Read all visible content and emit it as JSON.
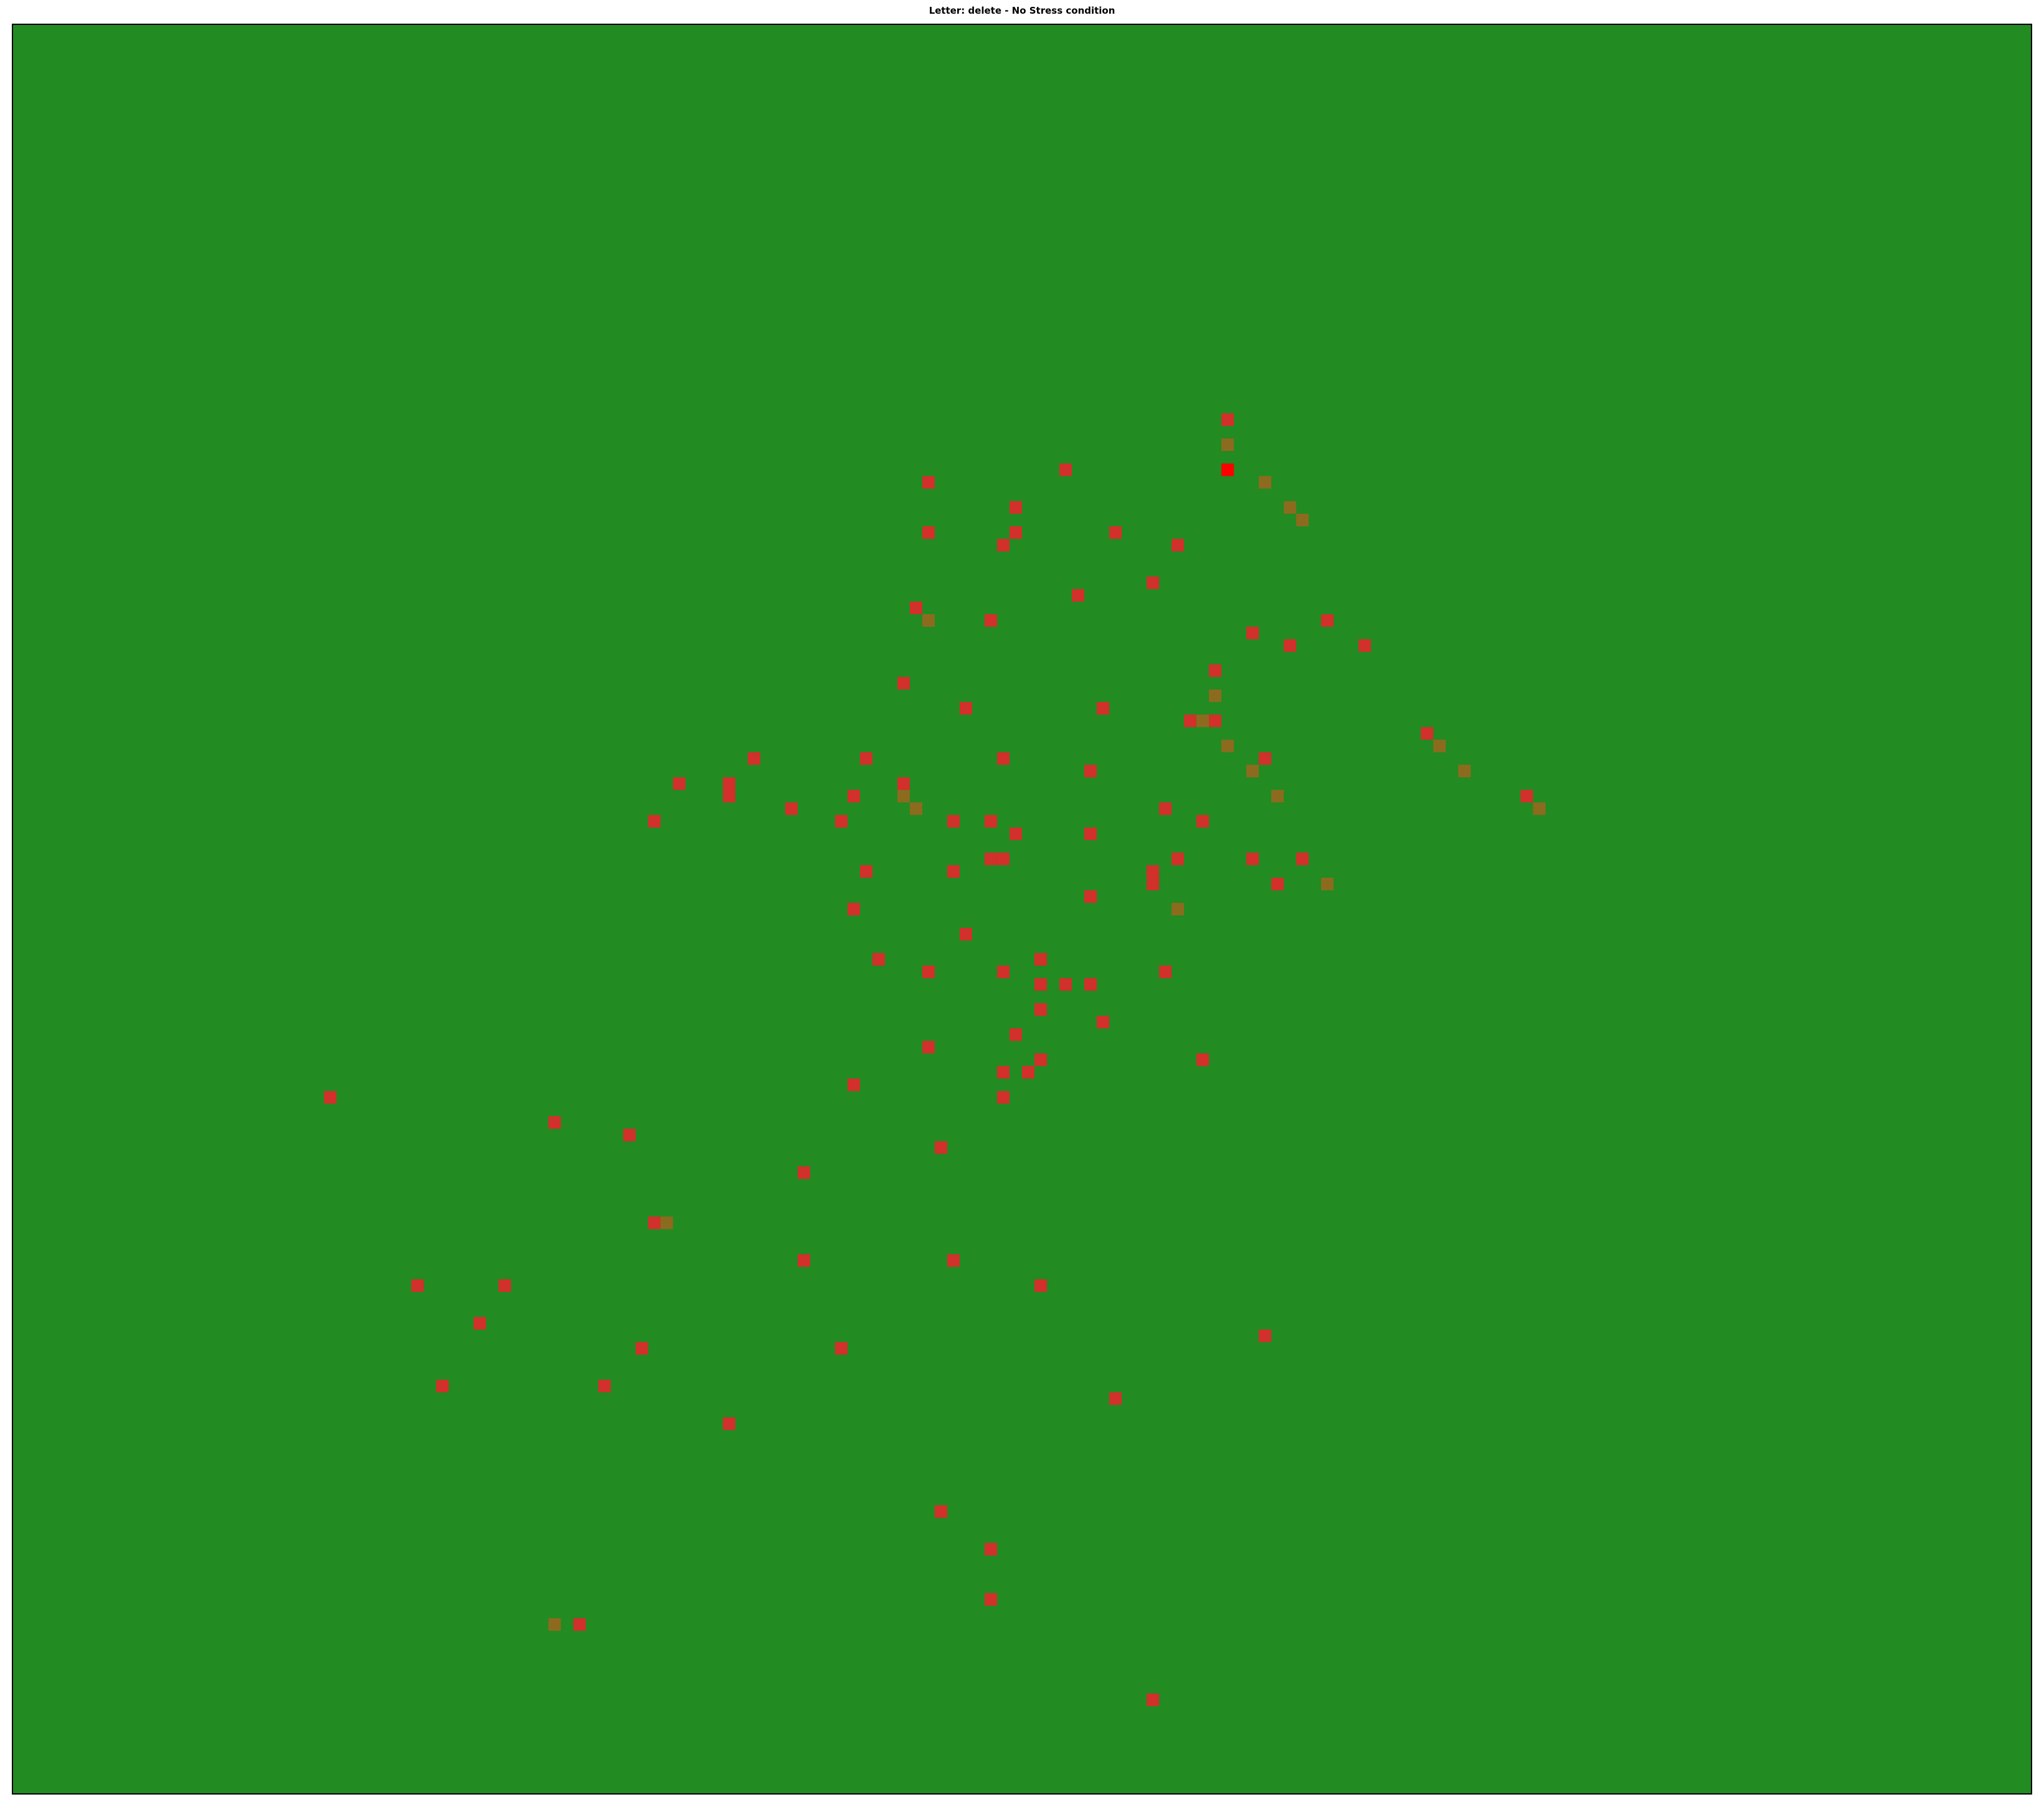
{
  "chart_data": {
    "type": "heatmap",
    "title": "Letter: delete - No Stress condition",
    "xlabel": "",
    "ylabel": "",
    "grid": false,
    "legend": "none",
    "axis_ticks": "hidden",
    "colors": {
      "background_cell": "#228B22",
      "error_cell": "#D2302A",
      "mixed_cell": "#8C6B1F",
      "max_cell": "#FF0000",
      "frame": "#000000"
    },
    "grid_size": {
      "cols": 162,
      "rows": 141
    },
    "cells": {
      "error": [
        [
          97,
          31
        ],
        [
          73,
          36
        ],
        [
          84,
          35
        ],
        [
          80,
          38
        ],
        [
          73,
          40
        ],
        [
          80,
          40
        ],
        [
          88,
          40
        ],
        [
          79,
          41
        ],
        [
          93,
          41
        ],
        [
          91,
          44
        ],
        [
          85,
          45
        ],
        [
          72,
          46
        ],
        [
          78,
          47
        ],
        [
          105,
          47
        ],
        [
          99,
          48
        ],
        [
          102,
          49
        ],
        [
          108,
          49
        ],
        [
          96,
          51
        ],
        [
          71,
          52
        ],
        [
          76,
          54
        ],
        [
          87,
          54
        ],
        [
          94,
          55
        ],
        [
          96,
          55
        ],
        [
          59,
          58
        ],
        [
          68,
          58
        ],
        [
          79,
          58
        ],
        [
          100,
          58
        ],
        [
          53,
          60
        ],
        [
          57,
          60
        ],
        [
          71,
          60
        ],
        [
          86,
          59
        ],
        [
          57,
          61
        ],
        [
          67,
          61
        ],
        [
          62,
          62
        ],
        [
          113,
          56
        ],
        [
          121,
          61
        ],
        [
          51,
          63
        ],
        [
          66,
          63
        ],
        [
          75,
          63
        ],
        [
          78,
          63
        ],
        [
          92,
          62
        ],
        [
          95,
          63
        ],
        [
          80,
          64
        ],
        [
          86,
          64
        ],
        [
          78,
          66
        ],
        [
          79,
          66
        ],
        [
          93,
          66
        ],
        [
          99,
          66
        ],
        [
          103,
          66
        ],
        [
          68,
          67
        ],
        [
          75,
          67
        ],
        [
          91,
          67
        ],
        [
          91,
          68
        ],
        [
          101,
          68
        ],
        [
          86,
          69
        ],
        [
          67,
          70
        ],
        [
          76,
          72
        ],
        [
          69,
          74
        ],
        [
          82,
          74
        ],
        [
          73,
          75
        ],
        [
          79,
          75
        ],
        [
          92,
          75
        ],
        [
          82,
          76
        ],
        [
          84,
          76
        ],
        [
          86,
          76
        ],
        [
          82,
          78
        ],
        [
          87,
          79
        ],
        [
          80,
          80
        ],
        [
          73,
          81
        ],
        [
          82,
          82
        ],
        [
          95,
          82
        ],
        [
          79,
          83
        ],
        [
          81,
          83
        ],
        [
          67,
          84
        ],
        [
          25,
          85
        ],
        [
          79,
          85
        ],
        [
          43,
          87
        ],
        [
          49,
          88
        ],
        [
          74,
          89
        ],
        [
          63,
          91
        ],
        [
          51,
          95
        ],
        [
          63,
          98
        ],
        [
          75,
          98
        ],
        [
          32,
          100
        ],
        [
          39,
          100
        ],
        [
          82,
          100
        ],
        [
          37,
          103
        ],
        [
          100,
          104
        ],
        [
          50,
          105
        ],
        [
          66,
          105
        ],
        [
          34,
          108
        ],
        [
          47,
          108
        ],
        [
          88,
          109
        ],
        [
          57,
          111
        ],
        [
          74,
          118
        ],
        [
          78,
          121
        ],
        [
          78,
          125
        ],
        [
          45,
          127
        ],
        [
          91,
          133
        ]
      ],
      "mixed": [
        [
          97,
          33
        ],
        [
          100,
          36
        ],
        [
          102,
          38
        ],
        [
          103,
          39
        ],
        [
          73,
          47
        ],
        [
          96,
          53
        ],
        [
          95,
          55
        ],
        [
          97,
          57
        ],
        [
          114,
          57
        ],
        [
          99,
          59
        ],
        [
          116,
          59
        ],
        [
          71,
          61
        ],
        [
          72,
          62
        ],
        [
          101,
          61
        ],
        [
          122,
          62
        ],
        [
          105,
          68
        ],
        [
          93,
          70
        ],
        [
          52,
          95
        ],
        [
          43,
          127
        ]
      ],
      "max": [
        [
          97,
          35
        ]
      ]
    }
  }
}
